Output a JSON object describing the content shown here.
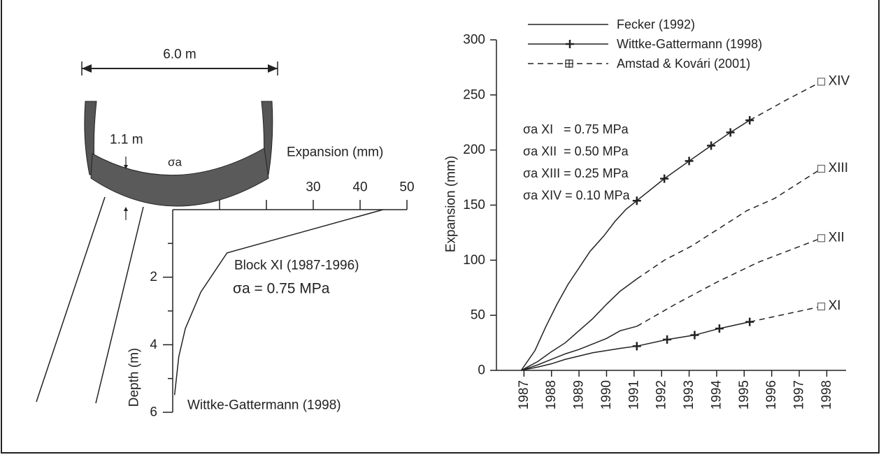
{
  "diagram": {
    "width_label": "6.0 m",
    "thickness_label": "1.1 m",
    "stress_label": "σa"
  },
  "chart_data": [
    {
      "type": "line",
      "x_label": "Expansion (mm)",
      "y_label": "Depth (m)",
      "x_axis_position": "top",
      "y_inverted": true,
      "xlim": [
        0,
        50
      ],
      "xticks": [
        30,
        40,
        50
      ],
      "xticks_minor": [
        10,
        20
      ],
      "ylim": [
        0,
        6
      ],
      "yticks": [
        2,
        4,
        6
      ],
      "yticks_minor": [
        1,
        3,
        5
      ],
      "series": [
        {
          "name": "Wittke-Gattermann (1998)",
          "color": "#222222",
          "x": [
            44.9,
            11.6,
            6.0,
            2.7,
            1.3,
            0.4
          ],
          "values": [
            0,
            1.28,
            2.44,
            3.52,
            4.35,
            5.49
          ]
        }
      ],
      "annotations": [
        "Block XI (1987-1996)",
        "σa = 0.75 MPa"
      ]
    },
    {
      "type": "line",
      "y_label": "Expansion (mm)",
      "xlim": [
        1986,
        1998.7
      ],
      "xticks": [
        1987,
        1988,
        1989,
        1990,
        1991,
        1992,
        1993,
        1994,
        1995,
        1996,
        1997,
        1998
      ],
      "ylim": [
        0,
        300
      ],
      "yticks": [
        0,
        50,
        100,
        150,
        200,
        250,
        300
      ],
      "annotations": [
        "σa XI   = 0.75 MPa",
        "σa XII  = 0.50 MPa",
        "σa XIII = 0.25 MPa",
        "σa XIV = 0.10 MPa"
      ],
      "series": [
        {
          "name": "Fecker (1992)",
          "color": "#222222",
          "dash": false,
          "marker": null,
          "curves": [
            {
              "x": [
                1986.9,
                1987.4,
                1987.8,
                1988.2,
                1988.6,
                1989.0,
                1989.4,
                1989.9,
                1990.3,
                1990.7,
                1991.1
              ],
              "values": [
                0,
                18,
                40,
                60,
                78,
                93,
                108,
                122,
                135,
                146,
                154
              ]
            },
            {
              "x": [
                1986.9,
                1987.5,
                1988,
                1988.5,
                1989,
                1989.5,
                1990,
                1990.5,
                1991.1
              ],
              "values": [
                0,
                8,
                17,
                25,
                36,
                47,
                60,
                72,
                83
              ]
            },
            {
              "x": [
                1986.9,
                1987.5,
                1988,
                1988.5,
                1989,
                1989.5,
                1990,
                1990.5,
                1991.1
              ],
              "values": [
                0,
                5,
                10,
                15,
                19,
                24,
                29,
                36,
                40
              ]
            },
            {
              "x": [
                1986.9,
                1987.5,
                1988,
                1988.5,
                1989,
                1989.5,
                1990,
                1990.5,
                1991.1
              ],
              "values": [
                0,
                3,
                6,
                10,
                13,
                16,
                18,
                20,
                22
              ]
            }
          ]
        },
        {
          "name": "Wittke-Gattermann (1998)",
          "color": "#222222",
          "dash": false,
          "marker": "plus",
          "curves": [
            {
              "x": [
                1991.1,
                1992.1,
                1993.0,
                1993.8,
                1994.5,
                1995.2
              ],
              "values": [
                154,
                174,
                190,
                204,
                216,
                227
              ]
            },
            {
              "x": [
                1991.1,
                1992.2,
                1993.2,
                1994.1,
                1995.2
              ],
              "values": [
                22,
                28,
                32,
                38,
                44
              ]
            }
          ]
        },
        {
          "name": "Amstad & Kovári (2001)",
          "color": "#222222",
          "dash": true,
          "marker": "square",
          "curves": [
            {
              "label": "XIV",
              "x": [
                1995.2,
                1996.5,
                1997.8
              ],
              "values": [
                227,
                245,
                262
              ]
            },
            {
              "label": "XIII",
              "x": [
                1991.1,
                1992.1,
                1993.1,
                1994.1,
                1995.1,
                1996.1,
                1997.8
              ],
              "values": [
                83,
                100,
                113,
                129,
                145,
                156,
                183
              ]
            },
            {
              "label": "XII",
              "x": [
                1991.1,
                1992.5,
                1994,
                1995.5,
                1997.8
              ],
              "values": [
                40,
                60,
                80,
                98,
                120
              ]
            },
            {
              "label": "XI",
              "x": [
                1995.2,
                1997.8
              ],
              "values": [
                44,
                58
              ]
            }
          ]
        }
      ]
    }
  ]
}
